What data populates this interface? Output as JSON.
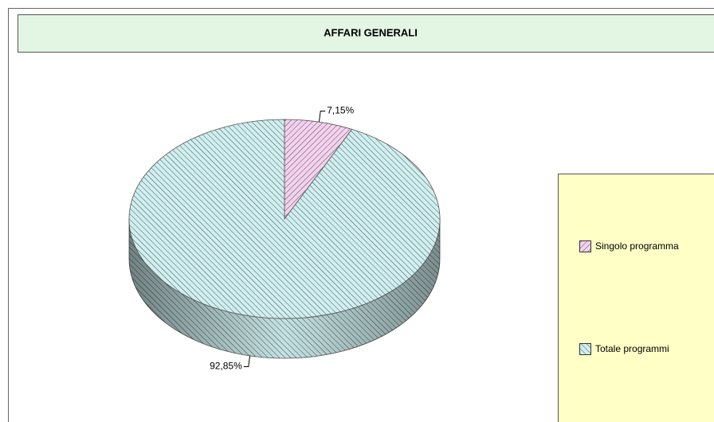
{
  "chart_data": {
    "type": "pie",
    "title": "AFFARI GENERALI",
    "categories": [
      "Singolo programma",
      "Totale programmi"
    ],
    "values": [
      7.15,
      92.85
    ],
    "value_labels": [
      "7,15%",
      "92,85%"
    ],
    "colors": [
      "#f4d2ef",
      "#cfeff0"
    ],
    "legend": "right"
  }
}
